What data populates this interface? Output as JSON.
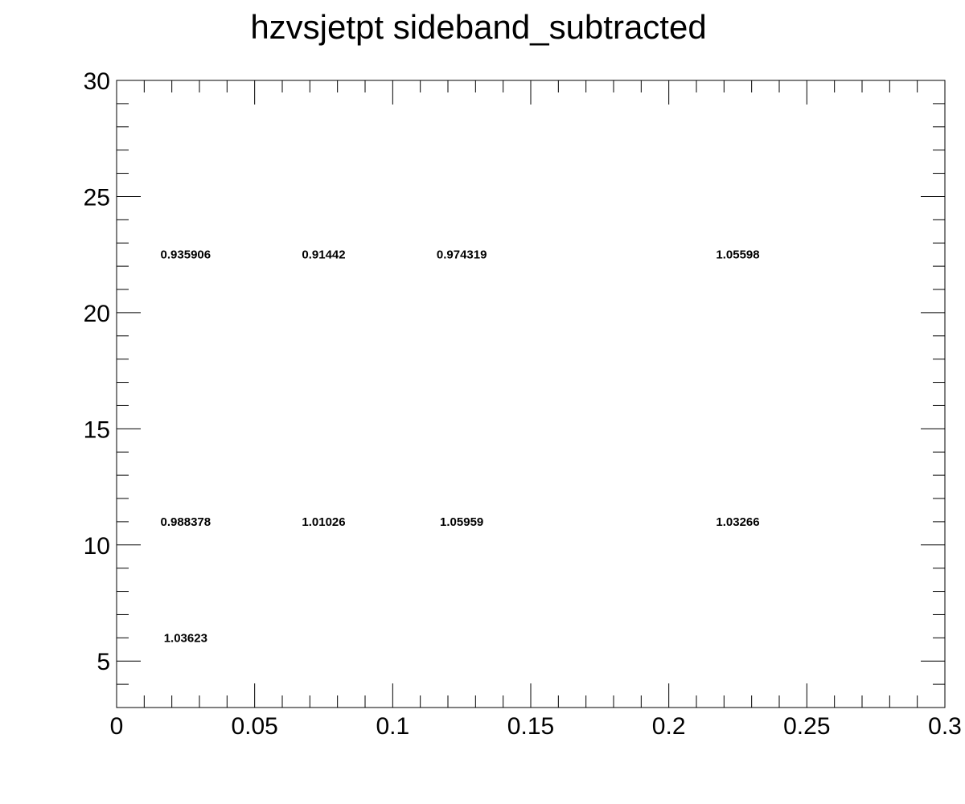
{
  "chart_data": {
    "type": "heatmap",
    "title": "hzvsjetpt sideband_subtracted",
    "xlabel": "",
    "ylabel": "",
    "xlim": [
      0,
      0.3
    ],
    "ylim": [
      3,
      30
    ],
    "x_ticks": [
      0,
      0.05,
      0.1,
      0.15,
      0.2,
      0.25,
      0.3
    ],
    "x_tick_labels": [
      "0",
      "0.05",
      "0.1",
      "0.15",
      "0.2",
      "0.25",
      "0.3"
    ],
    "x_minor_step": 0.01,
    "y_ticks": [
      5,
      10,
      15,
      20,
      25,
      30
    ],
    "y_tick_labels": [
      "5",
      "10",
      "15",
      "20",
      "25",
      "30"
    ],
    "y_minor_step": 1,
    "cells": [
      {
        "x": 0.025,
        "y": 22.5,
        "label": "0.935906"
      },
      {
        "x": 0.075,
        "y": 22.5,
        "label": "0.91442"
      },
      {
        "x": 0.125,
        "y": 22.5,
        "label": "0.974319"
      },
      {
        "x": 0.225,
        "y": 22.5,
        "label": "1.05598"
      },
      {
        "x": 0.025,
        "y": 11,
        "label": "0.988378"
      },
      {
        "x": 0.075,
        "y": 11,
        "label": "1.01026"
      },
      {
        "x": 0.125,
        "y": 11,
        "label": "1.05959"
      },
      {
        "x": 0.225,
        "y": 11,
        "label": "1.03266"
      },
      {
        "x": 0.025,
        "y": 6,
        "label": "1.03623"
      }
    ],
    "grid": false,
    "legend": "none"
  }
}
